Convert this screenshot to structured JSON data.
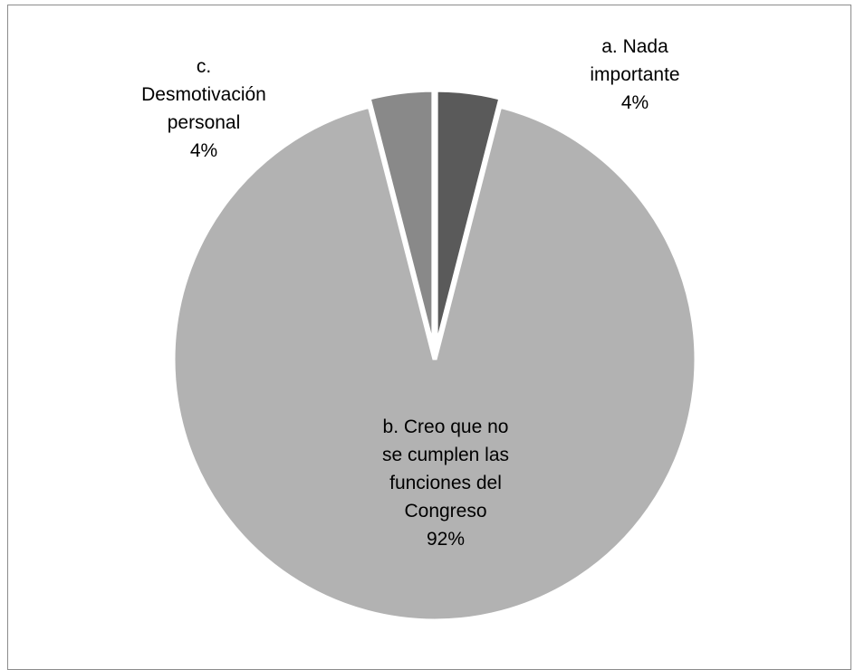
{
  "chart_data": {
    "type": "pie",
    "title": "",
    "slices": [
      {
        "label_lines": [
          "a. Nada",
          "importante"
        ],
        "percent_label": "4%",
        "value": 4,
        "color": "#5a5a5a"
      },
      {
        "label_lines": [
          "b. Creo que no",
          "se cumplen las",
          "funciones del",
          "Congreso"
        ],
        "percent_label": "92%",
        "value": 92,
        "color": "#b2b2b2"
      },
      {
        "label_lines": [
          "c.",
          "Desmotivación",
          "personal"
        ],
        "percent_label": "4%",
        "value": 4,
        "color": "#898989"
      }
    ],
    "legend": "none",
    "start_angle": "12 o'clock, clockwise",
    "slice_separator_color": "#ffffff"
  }
}
